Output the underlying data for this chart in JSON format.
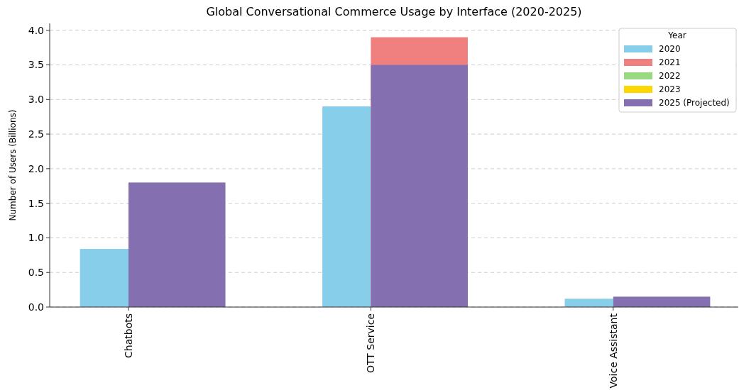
{
  "chart_data": {
    "type": "bar",
    "title": "Global Conversational Commerce Usage by Interface (2020-2025)",
    "ylabel": "Number of Users (Billions)",
    "legend_title": "Year",
    "categories": [
      "Chatbots",
      "OTT Service",
      "Voice Assistant"
    ],
    "series": [
      {
        "name": "2020",
        "color": "#87ceeb",
        "values": [
          0.84,
          2.9,
          0.12
        ]
      },
      {
        "name": "2021",
        "color": "#f08080",
        "values": [
          null,
          3.9,
          null
        ]
      },
      {
        "name": "2022",
        "color": "#98d982",
        "values": [
          null,
          null,
          null
        ]
      },
      {
        "name": "2023",
        "color": "#ffd700",
        "values": [
          null,
          null,
          null
        ]
      },
      {
        "name": "2025 (Projected)",
        "color": "#8470b0",
        "values": [
          1.8,
          3.5,
          0.15
        ]
      }
    ],
    "ylim": [
      0,
      4.1
    ],
    "yticks": [
      {
        "value": 0,
        "label": "0.0"
      },
      {
        "value": 0.5,
        "label": "0.5"
      },
      {
        "value": 1,
        "label": "1.0"
      },
      {
        "value": 1.5,
        "label": "1.5"
      },
      {
        "value": 2,
        "label": "2.0"
      },
      {
        "value": 2.5,
        "label": "2.5"
      },
      {
        "value": 3,
        "label": "3.0"
      },
      {
        "value": 3.5,
        "label": "3.5"
      },
      {
        "value": 4,
        "label": "4.0"
      }
    ],
    "grid": "y",
    "legend": "top right"
  }
}
